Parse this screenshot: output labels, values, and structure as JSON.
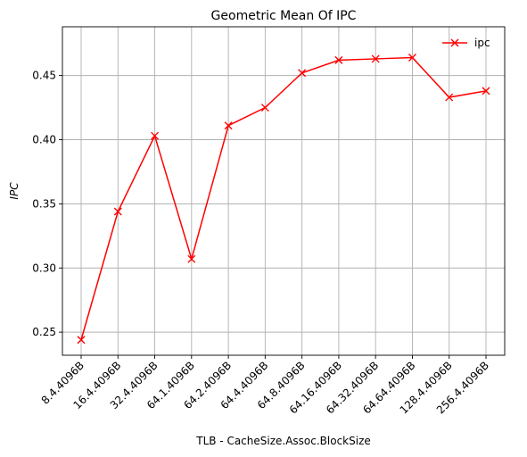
{
  "chart_data": {
    "type": "line",
    "title": "Geometric Mean Of IPC",
    "xlabel": "TLB - CacheSize.Assoc.BlockSize",
    "ylabel": "IPC",
    "categories": [
      "8.4.4096B",
      "16.4.4096B",
      "32.4.4096B",
      "64.1.4096B",
      "64.2.4096B",
      "64.4.4096B",
      "64.8.4096B",
      "64.16.4096B",
      "64.32.4096B",
      "64.64.4096B",
      "128.4.4096B",
      "256.4.4096B"
    ],
    "series": [
      {
        "name": "ipc",
        "color": "#ff0000",
        "marker": "x",
        "values": [
          0.244,
          0.344,
          0.403,
          0.307,
          0.411,
          0.425,
          0.452,
          0.462,
          0.463,
          0.464,
          0.433,
          0.438
        ]
      }
    ],
    "yticks": [
      0.25,
      0.3,
      0.35,
      0.4,
      0.45
    ],
    "ylim": [
      0.232,
      0.488
    ],
    "grid": true,
    "legend": "top-right"
  }
}
